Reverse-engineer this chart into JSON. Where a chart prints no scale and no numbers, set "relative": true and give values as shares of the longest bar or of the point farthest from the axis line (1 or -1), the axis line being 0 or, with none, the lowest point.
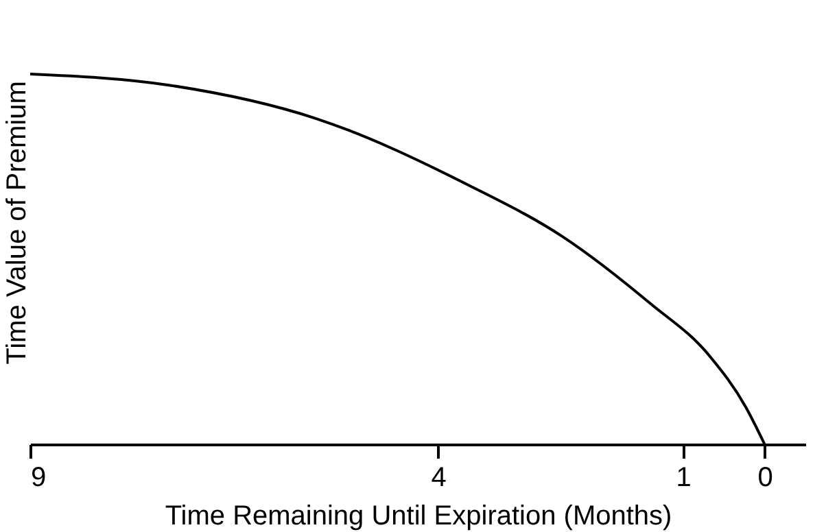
{
  "chart_data": {
    "type": "line",
    "relative": true,
    "xlabel": "Time Remaining Until Expiration (Months)",
    "ylabel": "Time Value of Premium",
    "x": [
      9,
      7.3,
      5.5,
      3.63,
      2.47,
      1.4,
      0.68,
      0.23,
      0
    ],
    "series": [
      {
        "color": "#000000",
        "values": [
          1.0,
          0.97,
          0.88,
          0.7,
          0.56,
          0.38,
          0.24,
          0.1,
          0
        ]
      }
    ],
    "xlim": [
      9,
      -0.5
    ],
    "xticks": [
      9,
      4,
      1,
      0
    ],
    "grid": false,
    "marker": "none",
    "line_style": "solid"
  }
}
